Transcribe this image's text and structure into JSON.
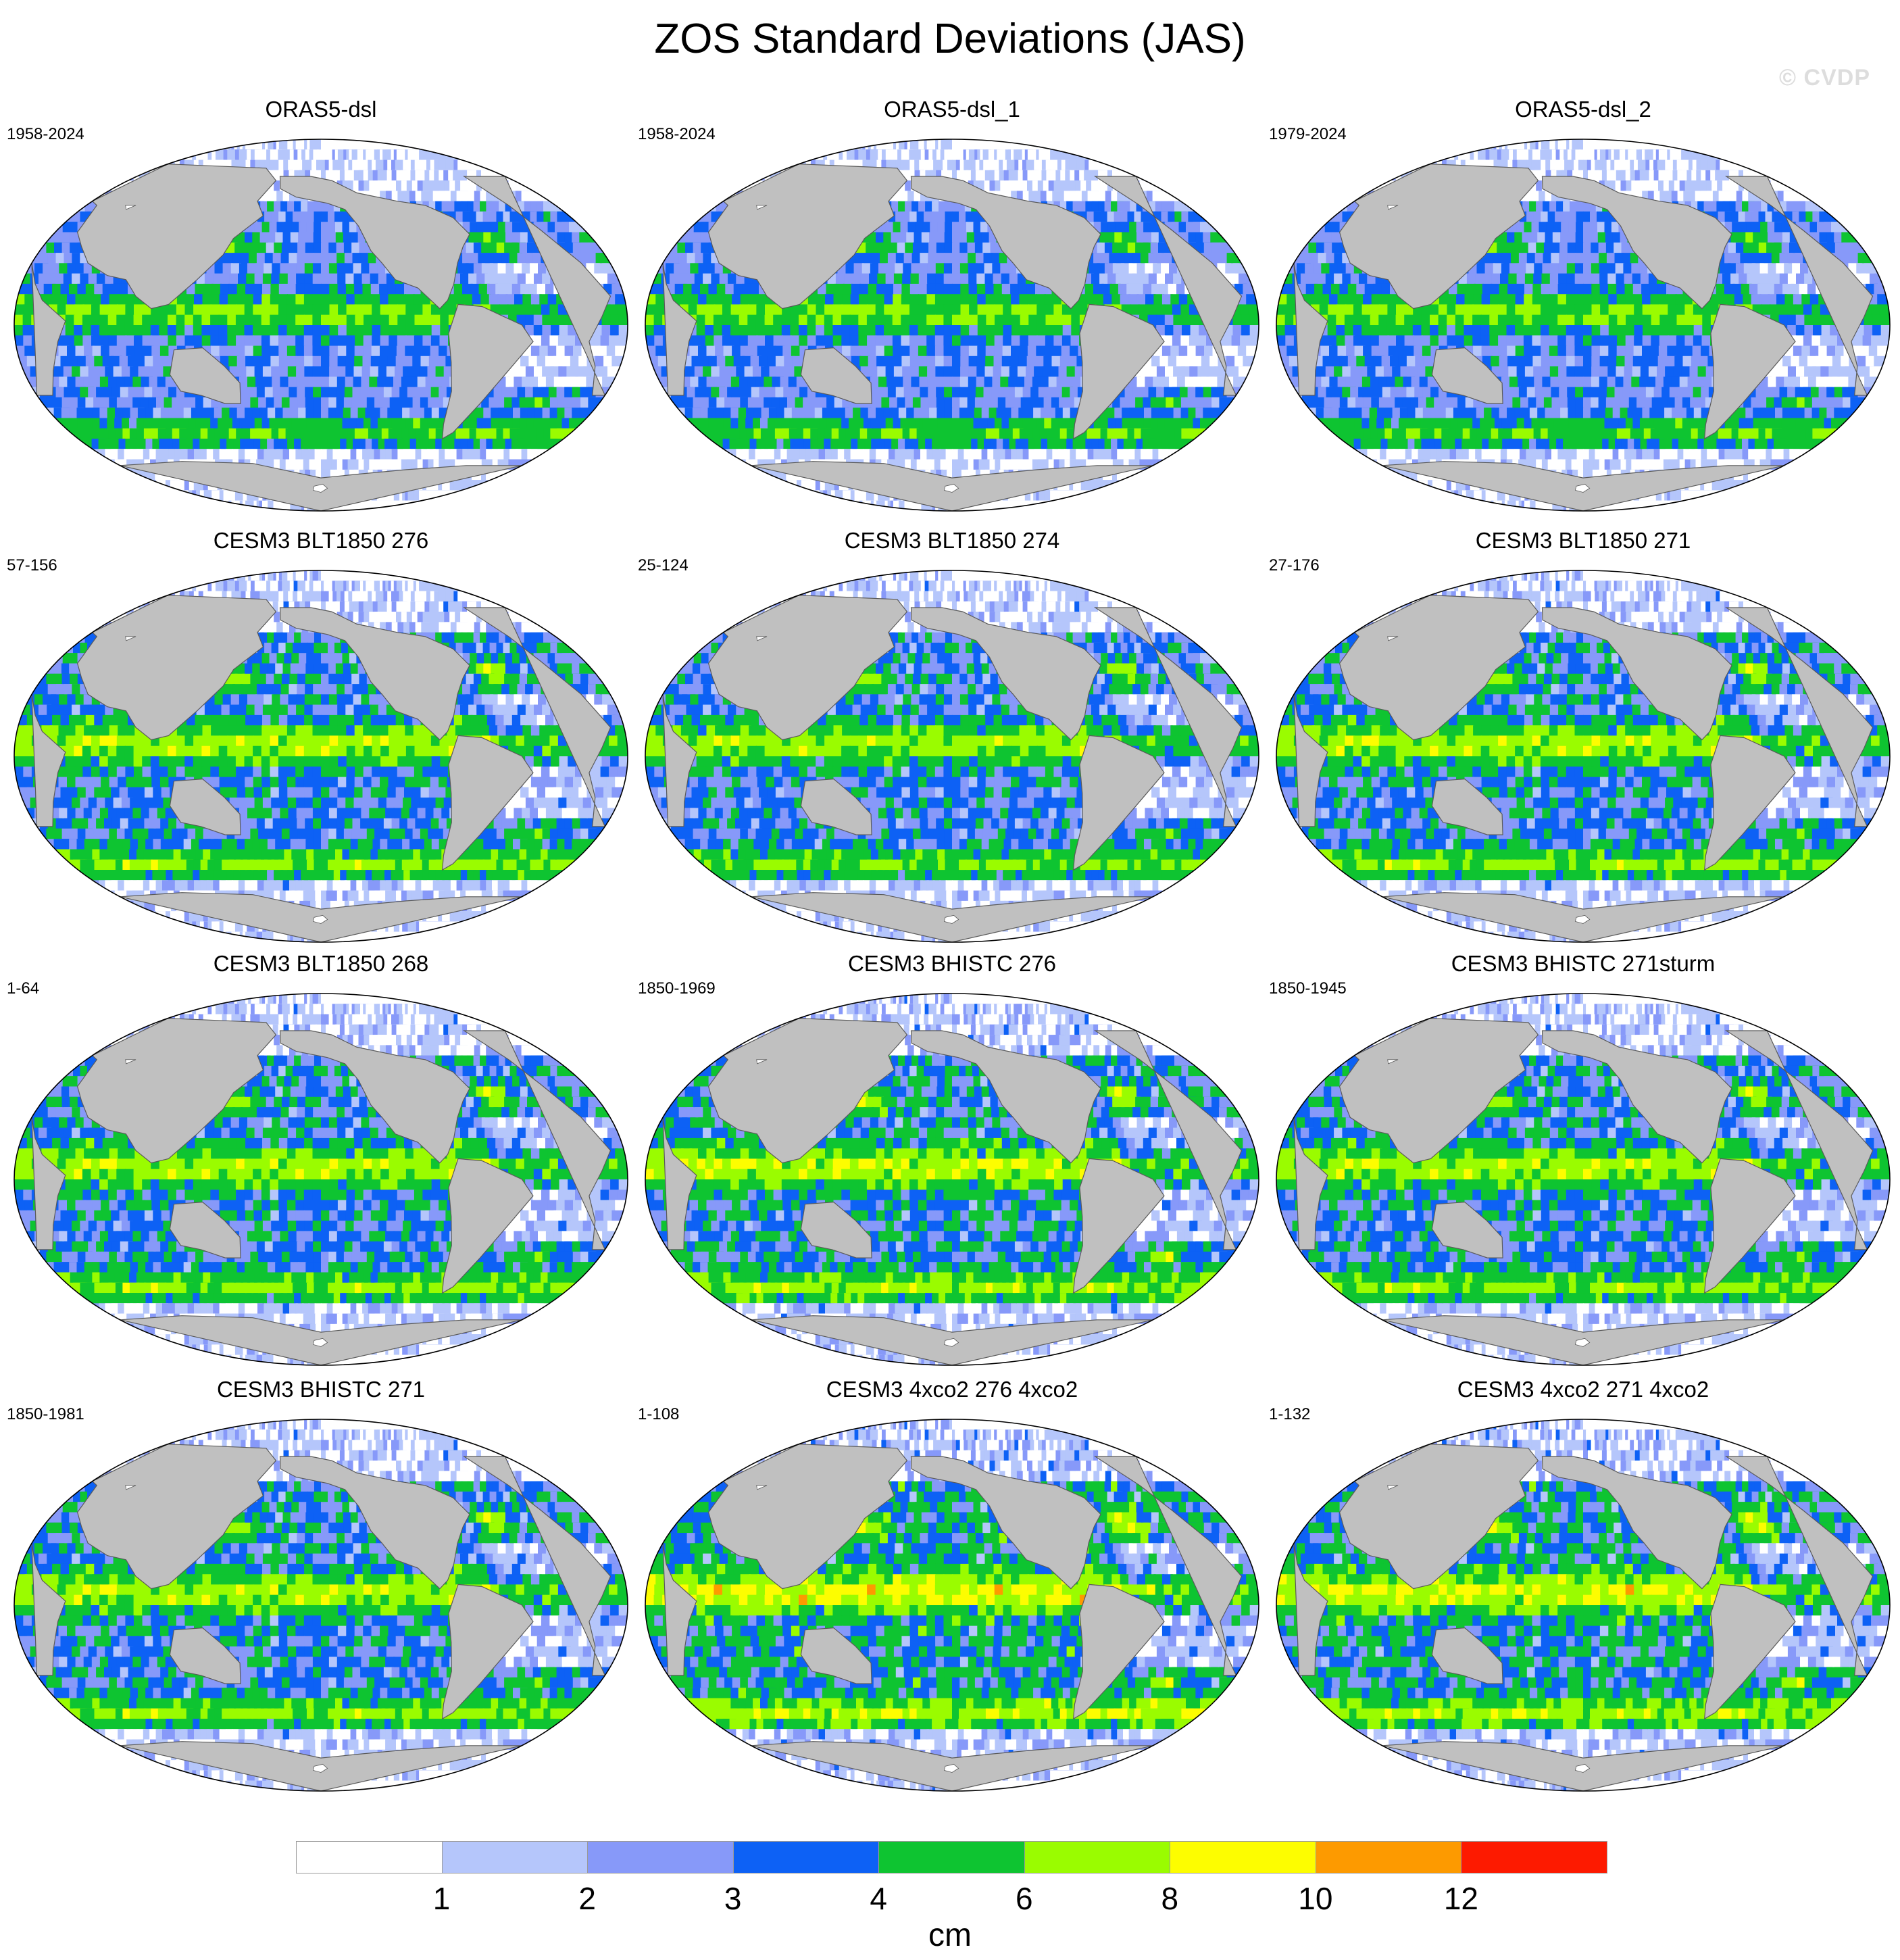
{
  "title": "ZOS Standard Deviations (JAS)",
  "watermark": "© CVDP",
  "colorbar": {
    "units": "cm",
    "ticks": [
      "1",
      "2",
      "3",
      "4",
      "6",
      "8",
      "10",
      "12"
    ],
    "levels": [
      1,
      2,
      3,
      4,
      6,
      8,
      10,
      12
    ],
    "colors": [
      "#ffffff",
      "#b5c6fb",
      "#8799f9",
      "#0d61f5",
      "#0ec431",
      "#9afc00",
      "#fdfd00",
      "#fd9a00",
      "#fd1a00"
    ]
  },
  "colors": {
    "land": "#c0c0c0",
    "coast": "#5a5a5a",
    "ice": "#ffffff"
  },
  "panels": [
    {
      "title": "ORAS5-dsl",
      "period": "1958-2024",
      "intensity": 0.85
    },
    {
      "title": "ORAS5-dsl_1",
      "period": "1958-2024",
      "intensity": 0.85
    },
    {
      "title": "ORAS5-dsl_2",
      "period": "1979-2024",
      "intensity": 0.85
    },
    {
      "title": "CESM3 BLT1850 276",
      "period": "57-156",
      "intensity": 1.0
    },
    {
      "title": "CESM3 BLT1850 274",
      "period": "25-124",
      "intensity": 0.95
    },
    {
      "title": "CESM3 BLT1850 271",
      "period": "27-176",
      "intensity": 1.0
    },
    {
      "title": "CESM3 BLT1850 268",
      "period": "1-64",
      "intensity": 1.0
    },
    {
      "title": "CESM3 BHISTC 276",
      "period": "1850-1969",
      "intensity": 1.05
    },
    {
      "title": "CESM3 BHISTC 271sturm",
      "period": "1850-1945",
      "intensity": 1.0
    },
    {
      "title": "CESM3 BHISTC 271",
      "period": "1850-1981",
      "intensity": 1.0
    },
    {
      "title": "CESM3 4xco2 276 4xco2",
      "period": "1-108",
      "intensity": 1.15
    },
    {
      "title": "CESM3 4xco2 271 4xco2",
      "period": "1-132",
      "intensity": 1.1
    }
  ]
}
